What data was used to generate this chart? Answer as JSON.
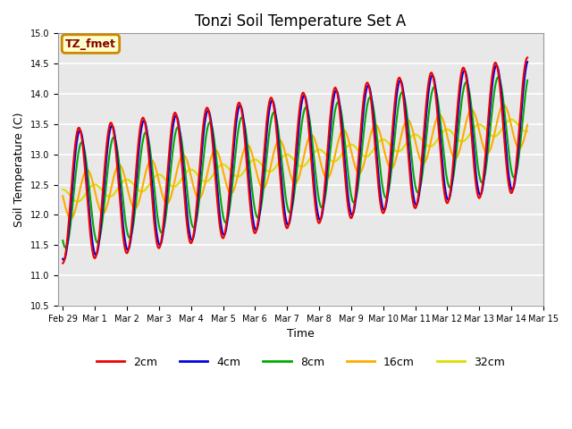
{
  "title": "Tonzi Soil Temperature Set A",
  "xlabel": "Time",
  "ylabel": "Soil Temperature (C)",
  "ylim": [
    10.5,
    15.0
  ],
  "xlim_start": -0.15,
  "xlim_end": 14.6,
  "tick_labels": [
    "Feb 29",
    "Mar 1",
    "Mar 2",
    "Mar 3",
    "Mar 4",
    "Mar 5",
    "Mar 6",
    "Mar 7",
    "Mar 8",
    "Mar 9",
    "Mar 10",
    "Mar 11",
    "Mar 12",
    "Mar 13",
    "Mar 14",
    "Mar 15"
  ],
  "annotation_text": "TZ_fmet",
  "annotation_color": "#880000",
  "annotation_bg": "#ffffcc",
  "annotation_border": "#cc8800",
  "colors": {
    "2cm": "#ee0000",
    "4cm": "#0000dd",
    "8cm": "#00aa00",
    "16cm": "#ffaa00",
    "32cm": "#dddd00"
  },
  "background_color": "#e8e8e8",
  "grid_color": "#ffffff",
  "title_fontsize": 12,
  "tick_fontsize": 7,
  "label_fontsize": 9,
  "legend_fontsize": 9
}
